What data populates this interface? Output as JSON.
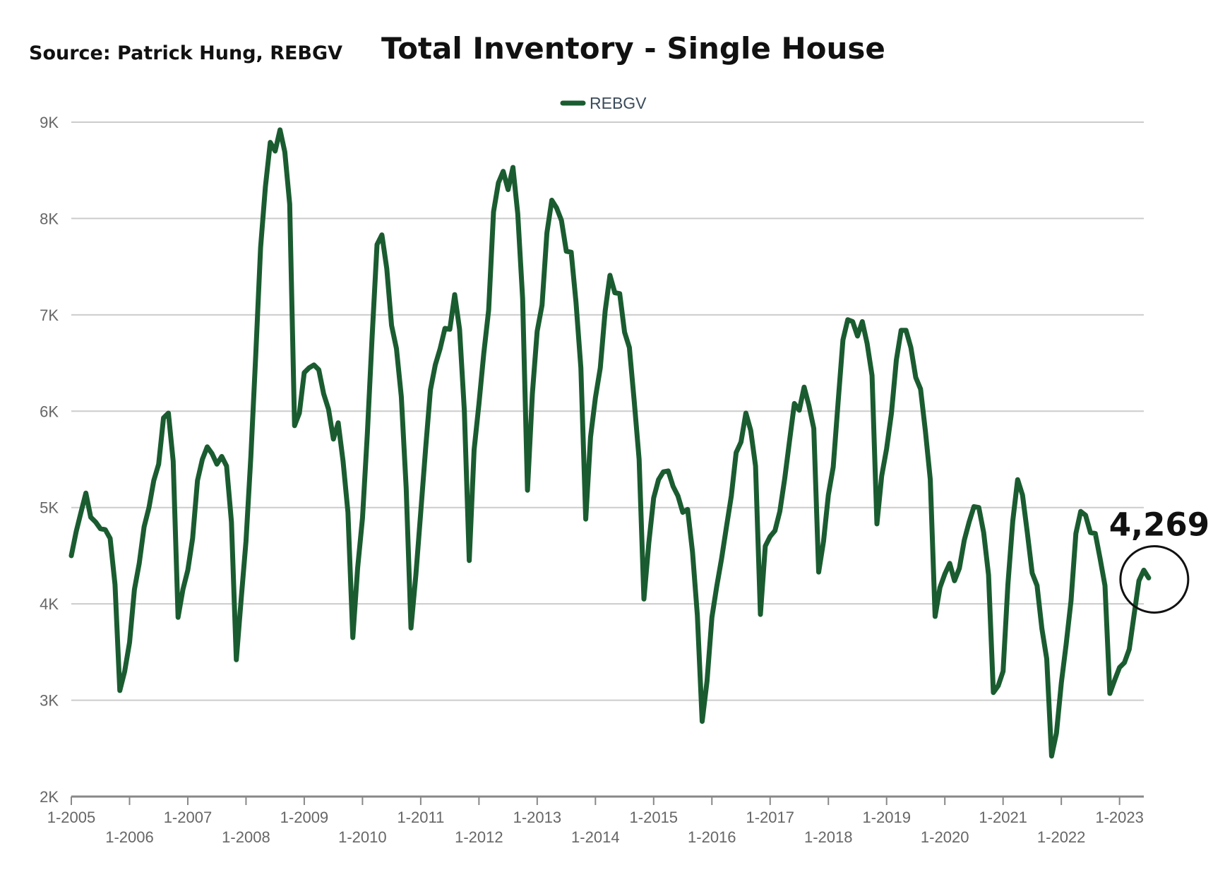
{
  "source_text": "Source:  Patrick Hung, REBGV",
  "title": "Total Inventory - Single House",
  "chart_data": {
    "type": "line",
    "title": "Total Inventory - Single House",
    "xlabel": "",
    "ylabel": "",
    "ylim": [
      2000,
      9000
    ],
    "y_ticks": [
      2000,
      3000,
      4000,
      5000,
      6000,
      7000,
      8000,
      9000
    ],
    "y_tick_labels": [
      "2K",
      "3K",
      "4K",
      "5K",
      "6K",
      "7K",
      "8K",
      "9K"
    ],
    "x_tick_labels": [
      "1-2005",
      "1-2006",
      "1-2007",
      "1-2008",
      "1-2009",
      "1-2010",
      "1-2011",
      "1-2012",
      "1-2013",
      "1-2014",
      "1-2015",
      "1-2016",
      "1-2017",
      "1-2018",
      "1-2019",
      "1-2020",
      "1-2021",
      "1-2022",
      "1-2023"
    ],
    "grid": true,
    "legend": {
      "position": "top-center",
      "entries": [
        "REBGV"
      ]
    },
    "colors": {
      "series": "#1a5c30",
      "grid": "#cccccc",
      "axis": "#888888"
    },
    "series": [
      {
        "name": "REBGV",
        "start": "1-2005",
        "frequency": "monthly",
        "values": [
          4500,
          4750,
          4950,
          5150,
          4900,
          4850,
          4780,
          4770,
          4680,
          4200,
          3100,
          3300,
          3600,
          4150,
          4420,
          4800,
          5000,
          5280,
          5450,
          5930,
          5980,
          5480,
          3860,
          4150,
          4350,
          4680,
          5280,
          5500,
          5630,
          5560,
          5450,
          5530,
          5430,
          4850,
          3420,
          4050,
          4650,
          5530,
          6580,
          7700,
          8330,
          8790,
          8700,
          8920,
          8690,
          8150,
          5850,
          5980,
          6400,
          6450,
          6480,
          6430,
          6180,
          6020,
          5710,
          5880,
          5480,
          4950,
          3650,
          4370,
          4890,
          5770,
          6780,
          7730,
          7830,
          7480,
          6890,
          6650,
          6150,
          5200,
          3750,
          4300,
          4950,
          5610,
          6220,
          6480,
          6650,
          6860,
          6850,
          7210,
          6850,
          6000,
          4450,
          5600,
          6080,
          6600,
          7050,
          8070,
          8370,
          8490,
          8300,
          8530,
          8050,
          7170,
          5180,
          6180,
          6830,
          7100,
          7850,
          8190,
          8110,
          7980,
          7660,
          7650,
          7130,
          6450,
          4880,
          5730,
          6140,
          6450,
          7040,
          7410,
          7230,
          7220,
          6820,
          6660,
          6100,
          5500,
          4050,
          4630,
          5100,
          5290,
          5370,
          5380,
          5220,
          5120,
          4950,
          4980,
          4540,
          3880,
          2780,
          3200,
          3860,
          4180,
          4470,
          4800,
          5120,
          5570,
          5680,
          5980,
          5800,
          5430,
          3890,
          4600,
          4700,
          4760,
          4960,
          5300,
          5690,
          6080,
          6010,
          6250,
          6060,
          5820,
          4330,
          4650,
          5130,
          5420,
          6090,
          6740,
          6950,
          6930,
          6780,
          6930,
          6700,
          6370,
          4830,
          5330,
          5610,
          5980,
          6530,
          6840,
          6840,
          6660,
          6350,
          6230,
          5790,
          5290,
          3870,
          4170,
          4310,
          4420,
          4240,
          4370,
          4660,
          4850,
          5010,
          5000,
          4740,
          4300,
          3080,
          3150,
          3300,
          4200,
          4860,
          5290,
          5130,
          4740,
          4320,
          4190,
          3740,
          3430,
          2420,
          2660,
          3180,
          3580,
          4030,
          4730,
          4960,
          4920,
          4740,
          4730,
          4470,
          4190,
          3070,
          3210,
          3340,
          3390,
          3530,
          3890,
          4240,
          4350,
          4269
        ]
      }
    ],
    "annotations": [
      {
        "text": "4,269",
        "at": "last point",
        "circled": true
      }
    ]
  }
}
